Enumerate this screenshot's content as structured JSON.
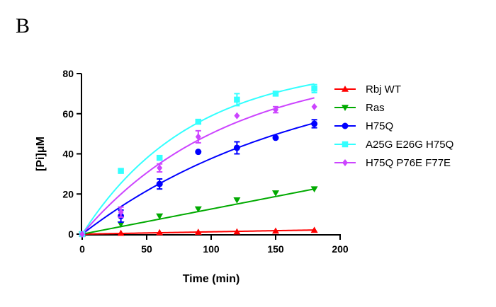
{
  "panel_label": "B",
  "chart_data": {
    "type": "scatter",
    "xlabel": "Time (min)",
    "ylabel": "[Pi]μM",
    "xlim": [
      0,
      200
    ],
    "ylim": [
      0,
      80
    ],
    "xticks": [
      0,
      50,
      100,
      150,
      200
    ],
    "yticks": [
      0,
      20,
      40,
      60,
      80
    ],
    "legend_position": "right",
    "grid": false,
    "series": [
      {
        "name": "Rbj WT",
        "color": "#ff0000",
        "marker": "triangle-up",
        "x": [
          0,
          30,
          60,
          90,
          120,
          150,
          180
        ],
        "y": [
          0,
          0.5,
          0.8,
          1.0,
          1.2,
          1.6,
          2.0
        ],
        "err": [
          0,
          0,
          0,
          0,
          0,
          0,
          0
        ],
        "fit": {
          "kind": "linear",
          "slope": 0.0115
        }
      },
      {
        "name": "Ras",
        "color": "#00aa00",
        "marker": "triangle-down",
        "x": [
          0,
          30,
          60,
          90,
          120,
          150,
          180
        ],
        "y": [
          0,
          5,
          9,
          12.5,
          17,
          20.5,
          22.5
        ],
        "err": [
          0,
          0,
          0,
          0,
          0,
          0,
          0
        ],
        "fit": {
          "kind": "linear",
          "slope": 0.125
        }
      },
      {
        "name": "H75Q",
        "color": "#0000ff",
        "marker": "circle",
        "x": [
          0,
          30,
          60,
          90,
          120,
          150,
          180
        ],
        "y": [
          0,
          9,
          25,
          41,
          43,
          48,
          55
        ],
        "err": [
          0,
          3,
          2.5,
          0,
          3,
          0,
          2
        ],
        "fit": {
          "kind": "exp",
          "ymax": 85,
          "k": 0.00585
        }
      },
      {
        "name": "A25G E26G H75Q",
        "color": "#33ffff",
        "marker": "square",
        "x": [
          0,
          30,
          60,
          90,
          120,
          150,
          180
        ],
        "y": [
          0,
          31.5,
          38,
          56,
          67,
          70,
          72.5
        ],
        "err": [
          0,
          1,
          1,
          1,
          3,
          1,
          2
        ],
        "fit": {
          "kind": "exp",
          "ymax": 85,
          "k": 0.0118
        }
      },
      {
        "name": "H75Q P76E F77E",
        "color": "#cc44ff",
        "marker": "diamond",
        "x": [
          0,
          30,
          60,
          90,
          120,
          150,
          180
        ],
        "y": [
          0,
          11,
          33,
          48.5,
          59,
          62,
          63.5
        ],
        "err": [
          0,
          2.5,
          2,
          3,
          0,
          1.5,
          0
        ],
        "fit": {
          "kind": "exp",
          "ymax": 85,
          "k": 0.0089
        }
      }
    ]
  }
}
